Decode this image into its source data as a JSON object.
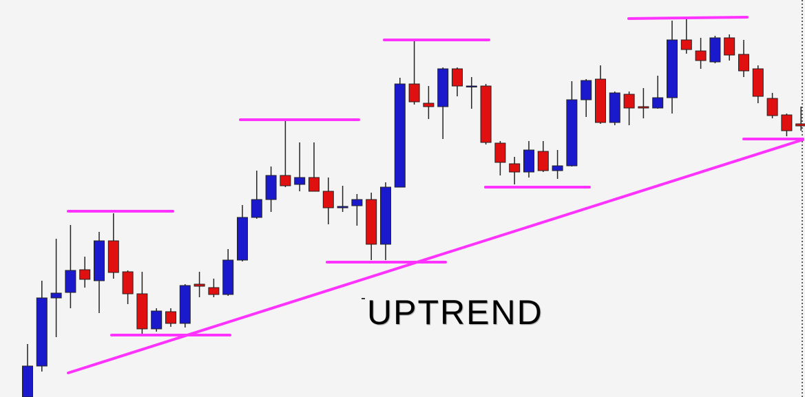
{
  "chart_data": {
    "type": "candlestick",
    "annotation": "UPTREND",
    "up_color": "#1a1acc",
    "down_color": "#e01010",
    "ylim": [
      0,
      577
    ],
    "open": [
      0,
      45,
      144,
      152,
      185,
      169,
      227,
      182,
      150,
      99,
      124,
      107,
      164,
      159,
      149,
      199,
      261,
      287,
      322,
      309,
      319,
      299,
      275,
      278,
      287,
      222,
      305,
      455,
      427,
      422,
      477,
      451,
      452,
      369,
      339,
      327,
      357,
      329,
      336,
      432,
      462,
      399,
      440,
      422,
      420,
      435,
      519,
      503,
      487,
      522,
      498,
      477,
      434,
      410,
      397
    ],
    "high": [
      77,
      169,
      230,
      250,
      204,
      240,
      267,
      184,
      182,
      129,
      129,
      164,
      182,
      172,
      215,
      279,
      329,
      335,
      402,
      370,
      370,
      319,
      307,
      295,
      297,
      312,
      464,
      520,
      452,
      479,
      479,
      465,
      455,
      372,
      349,
      372,
      372,
      359,
      459,
      462,
      482,
      444,
      444,
      449,
      467,
      547,
      552,
      522,
      525,
      527,
      519,
      482,
      442,
      412,
      422
    ],
    "low": [
      0,
      37,
      87,
      129,
      159,
      122,
      172,
      135,
      92,
      95,
      102,
      101,
      145,
      145,
      147,
      197,
      259,
      269,
      305,
      299,
      299,
      251,
      269,
      249,
      199,
      199,
      305,
      425,
      404,
      375,
      437,
      419,
      367,
      322,
      309,
      319,
      327,
      317,
      335,
      407,
      397,
      395,
      395,
      405,
      419,
      412,
      499,
      477,
      485,
      489,
      465,
      427,
      405,
      379,
      387
    ],
    "close": [
      45,
      144,
      151,
      184,
      171,
      227,
      181,
      150,
      99,
      125,
      107,
      162,
      161,
      149,
      199,
      261,
      287,
      322,
      307,
      319,
      299,
      275,
      277,
      287,
      222,
      305,
      455,
      429,
      422,
      477,
      452,
      452,
      370,
      341,
      327,
      359,
      329,
      336,
      432,
      460,
      399,
      442,
      420,
      420,
      435,
      519,
      505,
      489,
      522,
      497,
      474,
      437,
      409,
      387,
      394
    ]
  }
}
